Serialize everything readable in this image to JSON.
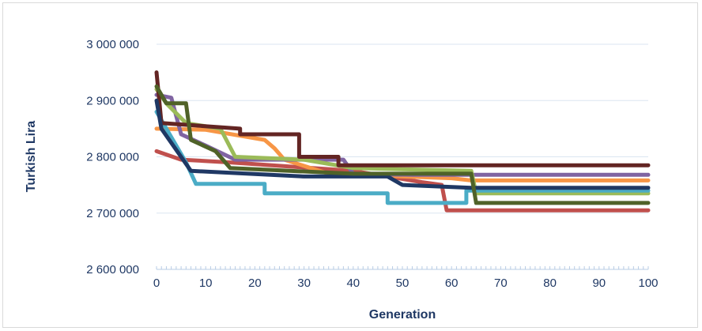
{
  "chart_data": {
    "type": "line",
    "title": "",
    "xlabel": "Generation",
    "ylabel": "Turkish Lira",
    "xlim": [
      0,
      100
    ],
    "ylim": [
      2600000,
      3000000
    ],
    "x_ticks": [
      0,
      10,
      20,
      30,
      40,
      50,
      60,
      70,
      80,
      90,
      100
    ],
    "y_ticks": [
      2600000,
      2700000,
      2800000,
      2900000,
      3000000
    ],
    "x_tick_labels": [
      "0",
      "10",
      "20",
      "30",
      "40",
      "50",
      "60",
      "70",
      "80",
      "90",
      "100"
    ],
    "y_tick_labels": [
      "2 600 000",
      "2 700 000",
      "2 800 000",
      "2 900 000",
      "3 000 000"
    ],
    "grid": "horizontal",
    "legend": "none",
    "series": [
      {
        "color": "#c0504d",
        "points": [
          [
            0,
            2810000
          ],
          [
            5,
            2795000
          ],
          [
            15,
            2790000
          ],
          [
            40,
            2775000
          ],
          [
            54,
            2755000
          ],
          [
            58,
            2750000
          ],
          [
            59,
            2705000
          ],
          [
            100,
            2705000
          ]
        ]
      },
      {
        "color": "#f79646",
        "points": [
          [
            0,
            2850000
          ],
          [
            10,
            2848000
          ],
          [
            22,
            2830000
          ],
          [
            24,
            2815000
          ],
          [
            26,
            2795000
          ],
          [
            35,
            2770000
          ],
          [
            50,
            2765000
          ],
          [
            60,
            2762000
          ],
          [
            64,
            2758000
          ],
          [
            100,
            2758000
          ]
        ]
      },
      {
        "color": "#8064a2",
        "points": [
          [
            0,
            2910000
          ],
          [
            3,
            2905000
          ],
          [
            5,
            2840000
          ],
          [
            10,
            2820000
          ],
          [
            16,
            2795000
          ],
          [
            38,
            2795000
          ],
          [
            40,
            2770000
          ],
          [
            52,
            2768000
          ],
          [
            100,
            2768000
          ]
        ]
      },
      {
        "color": "#9bbb59",
        "points": [
          [
            0,
            2920000
          ],
          [
            2,
            2895000
          ],
          [
            6,
            2860000
          ],
          [
            13,
            2850000
          ],
          [
            16,
            2800000
          ],
          [
            30,
            2795000
          ],
          [
            40,
            2780000
          ],
          [
            64,
            2775000
          ],
          [
            65,
            2735000
          ],
          [
            100,
            2735000
          ]
        ]
      },
      {
        "color": "#4bacc6",
        "points": [
          [
            0,
            2880000
          ],
          [
            4,
            2820000
          ],
          [
            6,
            2790000
          ],
          [
            8,
            2752000
          ],
          [
            22,
            2752000
          ],
          [
            22,
            2735000
          ],
          [
            47,
            2735000
          ],
          [
            47,
            2718000
          ],
          [
            63,
            2718000
          ],
          [
            63,
            2740000
          ],
          [
            100,
            2740000
          ]
        ]
      },
      {
        "color": "#632523",
        "points": [
          [
            0,
            2950000
          ],
          [
            1,
            2860000
          ],
          [
            17,
            2850000
          ],
          [
            17,
            2840000
          ],
          [
            29,
            2840000
          ],
          [
            29,
            2800000
          ],
          [
            37,
            2800000
          ],
          [
            37,
            2785000
          ],
          [
            100,
            2785000
          ]
        ]
      },
      {
        "color": "#1f3864",
        "points": [
          [
            0,
            2900000
          ],
          [
            1,
            2850000
          ],
          [
            7,
            2775000
          ],
          [
            30,
            2765000
          ],
          [
            47,
            2765000
          ],
          [
            50,
            2750000
          ],
          [
            64,
            2745000
          ],
          [
            100,
            2745000
          ]
        ]
      },
      {
        "color": "#4f6228",
        "points": [
          [
            0,
            2925000
          ],
          [
            2,
            2895000
          ],
          [
            6,
            2895000
          ],
          [
            7,
            2830000
          ],
          [
            12,
            2810000
          ],
          [
            15,
            2780000
          ],
          [
            40,
            2770000
          ],
          [
            64,
            2770000
          ],
          [
            65,
            2718000
          ],
          [
            100,
            2718000
          ]
        ]
      }
    ]
  }
}
